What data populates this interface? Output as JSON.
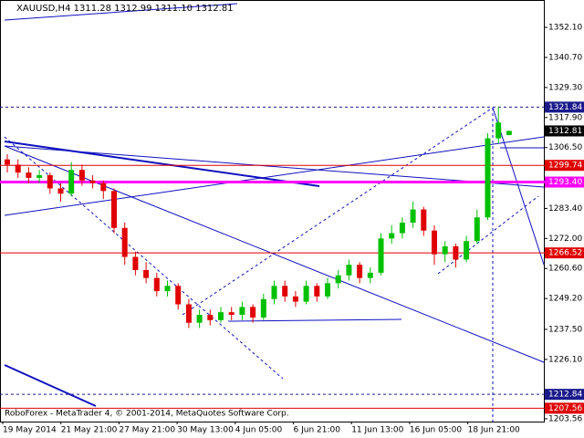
{
  "chart_data": {
    "type": "candlestick",
    "title": "XAUUSD,H4  1311.28 1312.99 1311.10 1312.81",
    "footer": "RoboForex - MetaTrader 4, © 2001-2014, MetaQuotes Software Corp.",
    "xlabels": [
      "19 May 2014",
      "21 May 21:00",
      "27 May 21:00",
      "30 May 13:00",
      "4 Jun 05:00",
      "6 Jun 21:00",
      "11 Jun 13:00",
      "16 Jun 05:00",
      "18 Jun 21:00"
    ],
    "ylim": [
      1202.5,
      1362.5
    ],
    "yticks": [
      {
        "value": 1352.1,
        "label": "1352.10"
      },
      {
        "value": 1340.7,
        "label": "1340.70"
      },
      {
        "value": 1329.3,
        "label": "1329.30"
      },
      {
        "value": 1317.9,
        "label": "1317.90"
      },
      {
        "value": 1306.5,
        "label": "1306.50"
      },
      {
        "value": 1283.4,
        "label": "1283.40"
      },
      {
        "value": 1272,
        "label": "1272.00"
      },
      {
        "value": 1260.6,
        "label": "1260.60"
      },
      {
        "value": 1249.2,
        "label": "1249.20"
      },
      {
        "value": 1237.5,
        "label": "1237.50"
      },
      {
        "value": 1226.1,
        "label": "1226.10"
      },
      1203.56
    ],
    "up_color": "#00c000",
    "down_color": "#e00000",
    "candles": [
      [
        1302,
        1304,
        1297,
        1300
      ],
      [
        1300,
        1302,
        1295,
        1297
      ],
      [
        1297,
        1299,
        1293,
        1295
      ],
      [
        1295,
        1298,
        1293,
        1296
      ],
      [
        1296,
        1297,
        1289,
        1291
      ],
      [
        1291,
        1293,
        1286,
        1289
      ],
      [
        1289,
        1301,
        1288,
        1298
      ],
      [
        1298,
        1300,
        1292,
        1294
      ],
      [
        1294,
        1296,
        1291,
        1293
      ],
      [
        1293,
        1294,
        1287,
        1290
      ],
      [
        1290,
        1291,
        1274,
        1276
      ],
      [
        1276,
        1278,
        1262,
        1265
      ],
      [
        1265,
        1267,
        1258,
        1260
      ],
      [
        1260,
        1263,
        1255,
        1257
      ],
      [
        1257,
        1259,
        1250,
        1252
      ],
      [
        1252,
        1256,
        1250,
        1254
      ],
      [
        1254,
        1255,
        1245,
        1247
      ],
      [
        1247,
        1249,
        1238,
        1240
      ],
      [
        1240,
        1245,
        1238,
        1243
      ],
      [
        1243,
        1245,
        1239,
        1241
      ],
      [
        1241,
        1246,
        1240,
        1244
      ],
      [
        1244,
        1246,
        1241,
        1243
      ],
      [
        1243,
        1248,
        1241,
        1246
      ],
      [
        1246,
        1247,
        1240,
        1242
      ],
      [
        1242,
        1251,
        1241,
        1249
      ],
      [
        1249,
        1256,
        1247,
        1254
      ],
      [
        1254,
        1256,
        1248,
        1250
      ],
      [
        1250,
        1252,
        1246,
        1248
      ],
      [
        1248,
        1256,
        1247,
        1254
      ],
      [
        1254,
        1255,
        1248,
        1250
      ],
      [
        1250,
        1257,
        1249,
        1255
      ],
      [
        1255,
        1260,
        1253,
        1258
      ],
      [
        1258,
        1264,
        1256,
        1262
      ],
      [
        1262,
        1263,
        1255,
        1257
      ],
      [
        1257,
        1261,
        1255,
        1259
      ],
      [
        1259,
        1274,
        1258,
        1272
      ],
      [
        1272,
        1277,
        1270,
        1274
      ],
      [
        1274,
        1280,
        1272,
        1278
      ],
      [
        1278,
        1286,
        1276,
        1283
      ],
      [
        1283,
        1284,
        1273,
        1275
      ],
      [
        1275,
        1277,
        1262,
        1266
      ],
      [
        1266,
        1271,
        1263,
        1269
      ],
      [
        1269,
        1270,
        1261,
        1264
      ],
      [
        1264,
        1273,
        1263,
        1271
      ],
      [
        1271,
        1283,
        1270,
        1280
      ],
      [
        1280,
        1312,
        1279,
        1310
      ],
      [
        1310,
        1322,
        1308,
        1316
      ],
      [
        1311.28,
        1312.99,
        1311.1,
        1312.81
      ]
    ],
    "levels": [
      {
        "value": 1321.84,
        "color": "#1a1a8c",
        "style": "dashed"
      },
      {
        "value": 1312.81,
        "color": "#000000",
        "style": "none"
      },
      {
        "value": 1299.74,
        "color": "#e00000",
        "style": "solid"
      },
      {
        "value": {
          "value": 1293.4,
          "label": "1293.40"
        },
        "color": "#ff00ff",
        "style": "thick"
      },
      {
        "value": 1266.52,
        "color": "#e00000",
        "style": "solid"
      },
      {
        "value": 1212.84,
        "color": "#1a1a8c",
        "style": "dashed"
      },
      {
        "value": 1207.56,
        "color": "#e00000",
        "style": "solid"
      }
    ]
  }
}
